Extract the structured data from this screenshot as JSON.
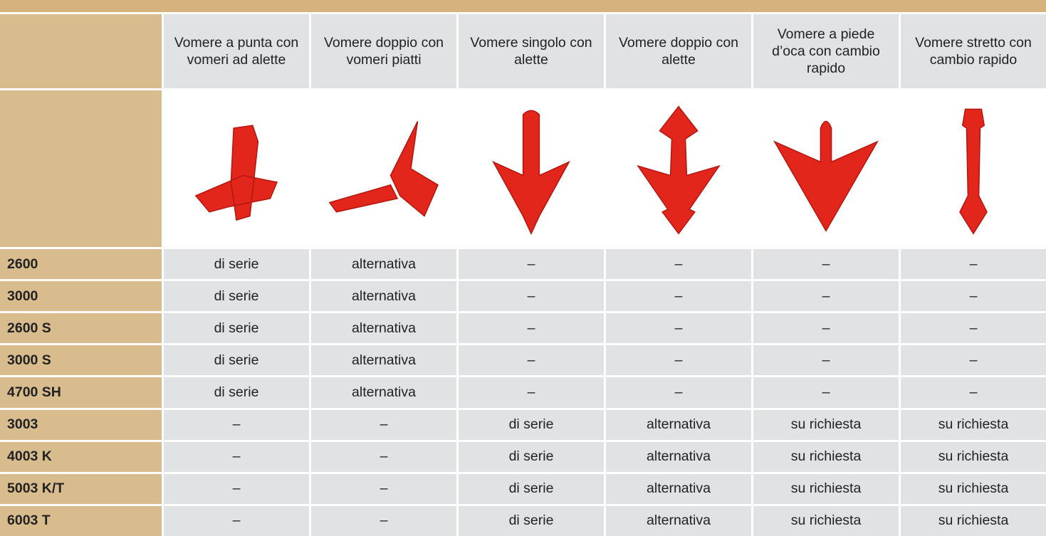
{
  "table": {
    "columns": [
      "Vomere a punta con vomeri ad alette",
      "Vomere doppio con vomeri piatti",
      "Vomere singolo con alette",
      "Vomere doppio con alette",
      "Vomere a piede d’oca con cambio rapido",
      "Vomere stretto con cambio rapido"
    ],
    "rows": [
      {
        "model": "2600",
        "values": [
          "di serie",
          "alternativa",
          "–",
          "–",
          "–",
          "–"
        ]
      },
      {
        "model": "3000",
        "values": [
          "di serie",
          "alternativa",
          "–",
          "–",
          "–",
          "–"
        ]
      },
      {
        "model": "2600 S",
        "values": [
          "di serie",
          "alternativa",
          "–",
          "–",
          "–",
          "–"
        ]
      },
      {
        "model": "3000 S",
        "values": [
          "di serie",
          "alternativa",
          "–",
          "–",
          "–",
          "–"
        ]
      },
      {
        "model": "4700 SH",
        "values": [
          "di serie",
          "alternativa",
          "–",
          "–",
          "–",
          "–"
        ]
      },
      {
        "model": "3003",
        "values": [
          "–",
          "–",
          "di serie",
          "alternativa",
          "su richiesta",
          "su richiesta"
        ]
      },
      {
        "model": "4003 K",
        "values": [
          "–",
          "–",
          "di serie",
          "alternativa",
          "su richiesta",
          "su richiesta"
        ]
      },
      {
        "model": "5003 K/T",
        "values": [
          "–",
          "–",
          "di serie",
          "alternativa",
          "su richiesta",
          "su richiesta"
        ]
      },
      {
        "model": "6003 T",
        "values": [
          "–",
          "–",
          "di serie",
          "alternativa",
          "su richiesta",
          "su richiesta"
        ]
      }
    ]
  }
}
